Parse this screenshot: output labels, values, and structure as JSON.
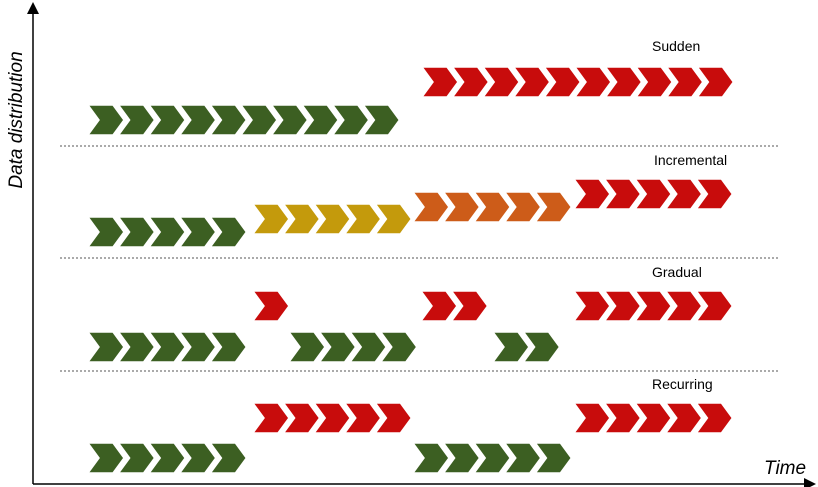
{
  "axes": {
    "y_label": "Data distribution",
    "x_label": "Time"
  },
  "colors": {
    "green": "#3c5f22",
    "yellow": "#c49a0c",
    "orange": "#cd5c19",
    "red": "#c80c0c",
    "separator": "#555555"
  },
  "panels": [
    {
      "label": "Sudden",
      "groups": [
        {
          "color": "green",
          "chevrons": 10,
          "level": "low"
        },
        {
          "color": "red",
          "chevrons": 10,
          "level": "high"
        }
      ]
    },
    {
      "label": "Incremental",
      "groups": [
        {
          "color": "green",
          "chevrons": 5,
          "level": "low"
        },
        {
          "color": "yellow",
          "chevrons": 5,
          "level": "mid-low"
        },
        {
          "color": "orange",
          "chevrons": 5,
          "level": "mid-high"
        },
        {
          "color": "red",
          "chevrons": 5,
          "level": "high"
        }
      ]
    },
    {
      "label": "Gradual",
      "groups": [
        {
          "color": "green",
          "chevrons": 5,
          "level": "low"
        },
        {
          "color": "red",
          "chevrons": 1,
          "level": "high"
        },
        {
          "color": "green",
          "chevrons": 4,
          "level": "low"
        },
        {
          "color": "red",
          "chevrons": 2,
          "level": "high"
        },
        {
          "color": "green",
          "chevrons": 2,
          "level": "low"
        },
        {
          "color": "red",
          "chevrons": 5,
          "level": "high"
        }
      ]
    },
    {
      "label": "Recurring",
      "groups": [
        {
          "color": "green",
          "chevrons": 5,
          "level": "low"
        },
        {
          "color": "red",
          "chevrons": 5,
          "level": "high"
        },
        {
          "color": "green",
          "chevrons": 5,
          "level": "low"
        },
        {
          "color": "red",
          "chevrons": 5,
          "level": "high"
        }
      ]
    }
  ]
}
